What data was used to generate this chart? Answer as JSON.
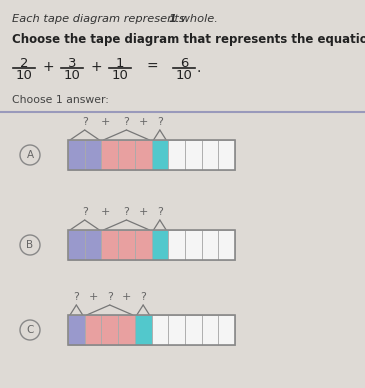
{
  "title_line1": "Each tape diagram represents ",
  "title_1_bold": "1",
  "title_line1_end": " whole.",
  "title_line2": "Choose the tape diagram that represents the equation,",
  "choose_text": "Choose 1 answer:",
  "bg_color": "#dedad5",
  "separator_color": "#9999bb",
  "fractions": [
    {
      "num": "2",
      "den": "10"
    },
    {
      "num": "3",
      "den": "10"
    },
    {
      "num": "1",
      "den": "10"
    },
    {
      "num": "6",
      "den": "10"
    }
  ],
  "operators": [
    "+",
    "+",
    "="
  ],
  "options": [
    {
      "label": "A",
      "brace_groups": [
        2,
        3,
        1
      ],
      "cell_colors": [
        "#9999cc",
        "#9999cc",
        "#e8a0a0",
        "#e8a0a0",
        "#e8a0a0",
        "#52c8cc",
        "#f5f5f5",
        "#f5f5f5",
        "#f5f5f5",
        "#f5f5f5"
      ],
      "n_cells": 10
    },
    {
      "label": "B",
      "brace_groups": [
        2,
        3,
        1
      ],
      "cell_colors": [
        "#9999cc",
        "#9999cc",
        "#e8a0a0",
        "#e8a0a0",
        "#e8a0a0",
        "#52c8cc",
        "#f5f5f5",
        "#f5f5f5",
        "#f5f5f5",
        "#f5f5f5"
      ],
      "n_cells": 10
    },
    {
      "label": "C",
      "brace_groups": [
        1,
        3,
        1
      ],
      "cell_colors": [
        "#9999cc",
        "#e8a0a0",
        "#e8a0a0",
        "#e8a0a0",
        "#52c8cc",
        "#f5f5f5",
        "#f5f5f5",
        "#f5f5f5",
        "#f5f5f5",
        "#f5f5f5"
      ],
      "n_cells": 10
    }
  ]
}
